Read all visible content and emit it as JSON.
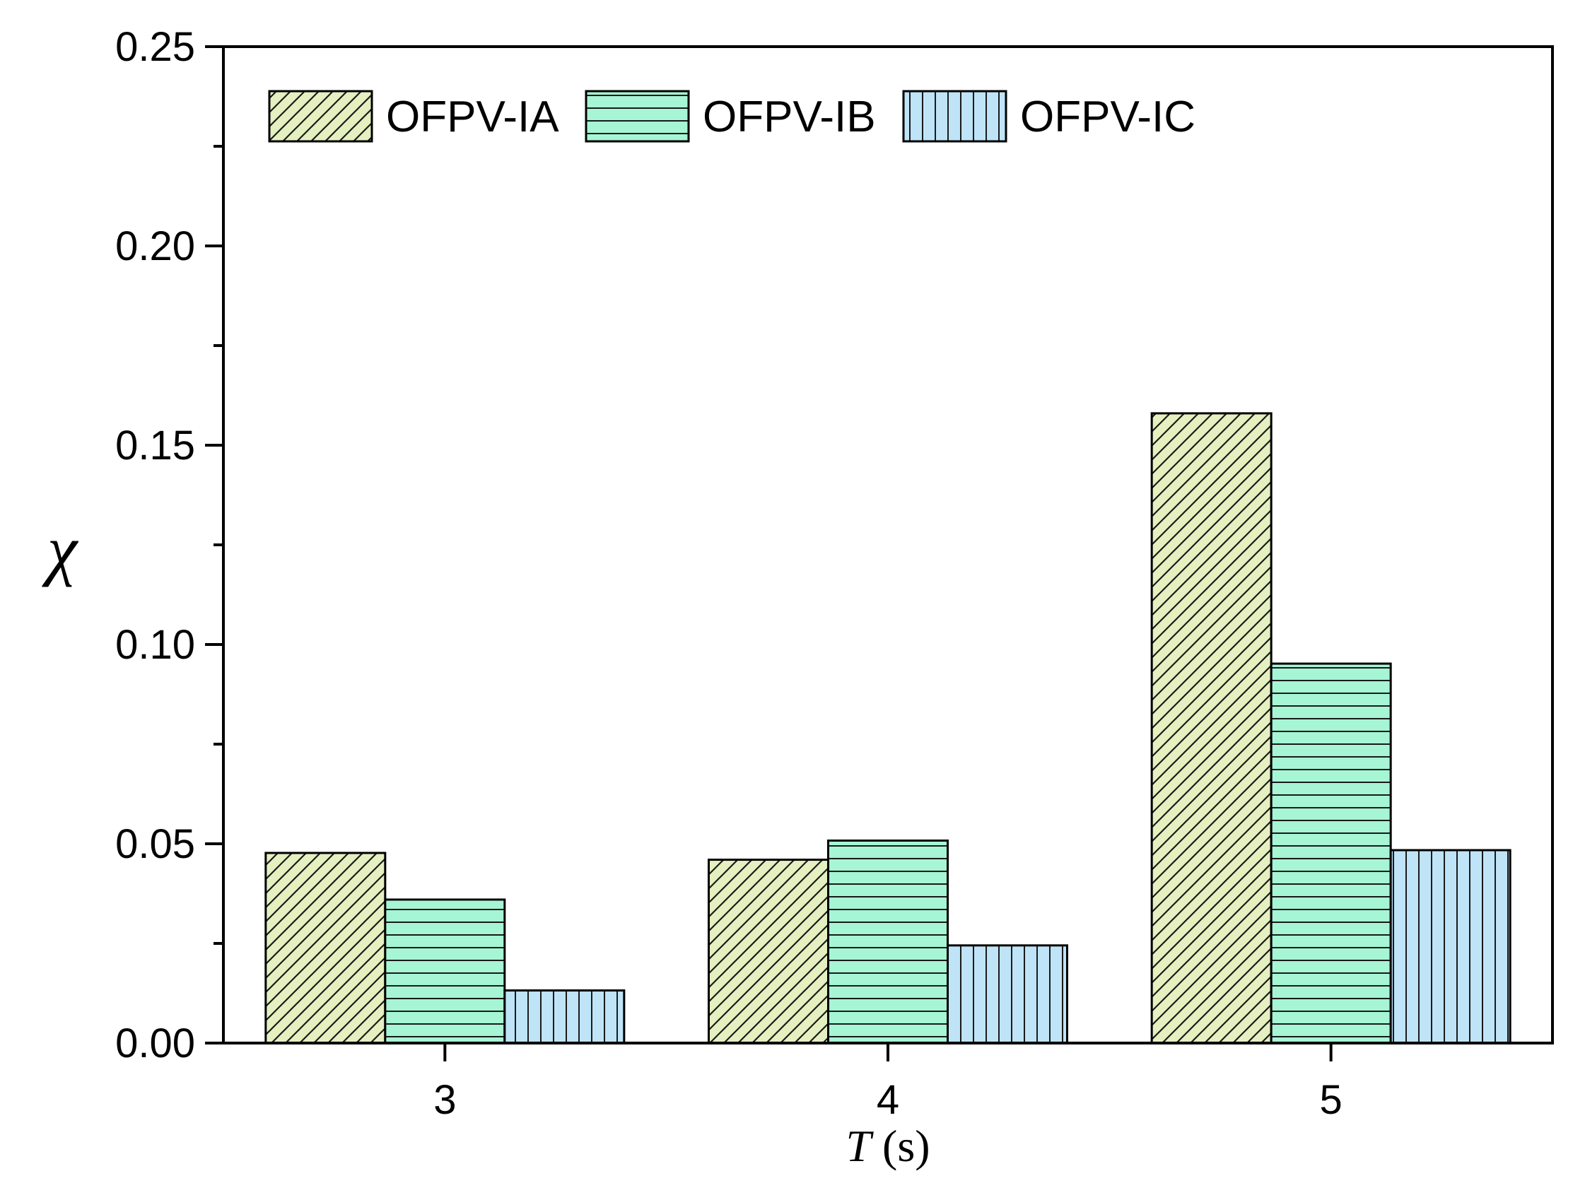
{
  "chart_data": {
    "type": "bar",
    "categories": [
      "3",
      "4",
      "5"
    ],
    "series": [
      {
        "name": "OFPV-IA",
        "values": [
          0.0477,
          0.046,
          0.158
        ],
        "color": "#e5f0c0",
        "pattern": "diagonal-hatch"
      },
      {
        "name": "OFPV-IB",
        "values": [
          0.036,
          0.0508,
          0.0952
        ],
        "color": "#a6f5d5",
        "pattern": "horizontal-hatch"
      },
      {
        "name": "OFPV-IC",
        "values": [
          0.0132,
          0.0245,
          0.0484
        ],
        "color": "#bfe4f7",
        "pattern": "vertical-hatch"
      }
    ],
    "title": "",
    "xlabel": {
      "italic": "T",
      "rest": " (s)"
    },
    "ylabel": "χ",
    "ylim": [
      0,
      0.25
    ],
    "yticks": [
      "0.00",
      "0.05",
      "0.10",
      "0.15",
      "0.20",
      "0.25"
    ],
    "grid": false,
    "legend_position": "top-left"
  }
}
